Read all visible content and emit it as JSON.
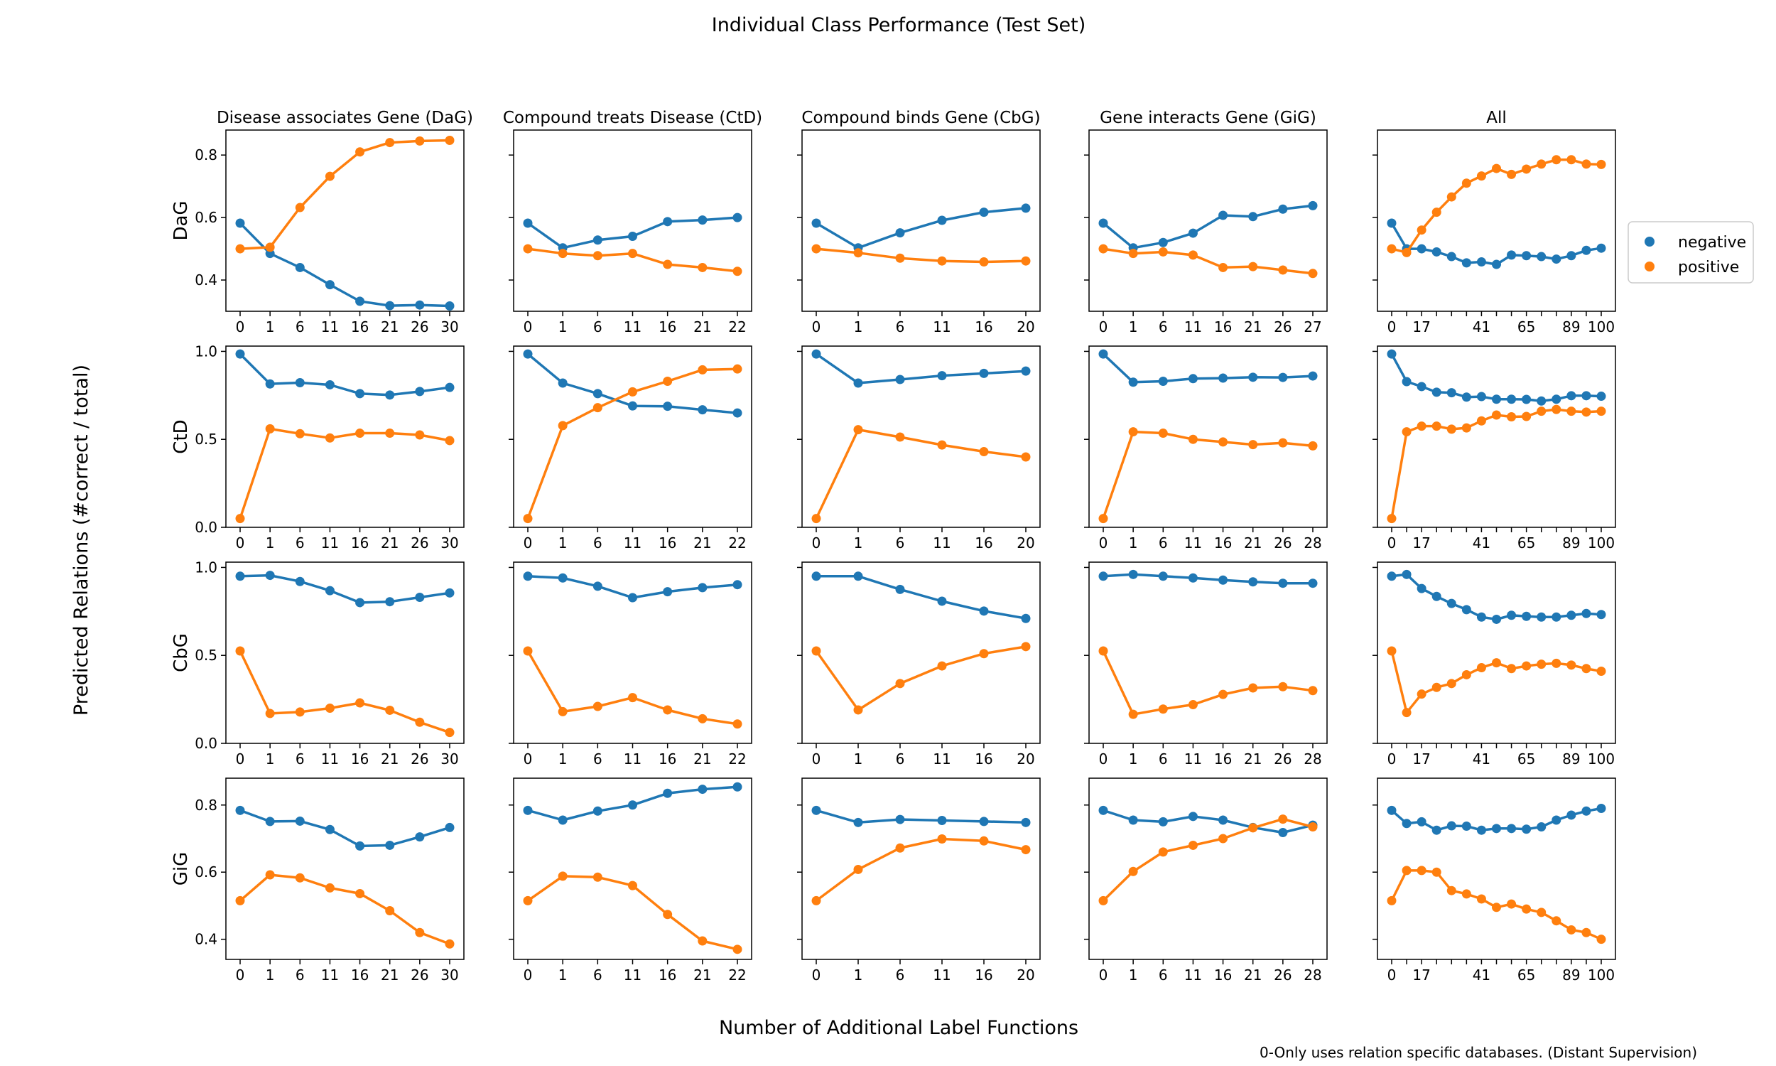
{
  "figure": {
    "title": "Individual Class Performance (Test Set)",
    "xlabel": "Number of Additional Label Functions",
    "ylabel": "Predicted Relations (#correct / total)",
    "footnote": "0-Only uses relation specific databases. (Distant Supervision)"
  },
  "legend": {
    "placement": "right",
    "entries": [
      {
        "label": "negative",
        "color": "#1f77b4"
      },
      {
        "label": "positive",
        "color": "#ff7f0e"
      }
    ]
  },
  "colors": {
    "negative": "#1f77b4",
    "positive": "#ff7f0e"
  },
  "chart_data": {
    "type": "line",
    "columns": [
      {
        "title": "Disease associates Gene (DaG)",
        "x_ticks": [
          "0",
          "1",
          "6",
          "11",
          "16",
          "21",
          "26",
          "30"
        ]
      },
      {
        "title": "Compound treats Disease (CtD)",
        "x_ticks": [
          "0",
          "1",
          "6",
          "11",
          "16",
          "21",
          "22"
        ]
      },
      {
        "title": "Compound binds Gene (CbG)",
        "x_ticks": [
          "0",
          "1",
          "6",
          "11",
          "16",
          "20"
        ]
      },
      {
        "title": "Gene interacts Gene (GiG)",
        "x_ticks": [
          "0",
          "1",
          "6",
          "11",
          "16",
          "21",
          "26",
          "27"
        ]
      },
      {
        "title": "All",
        "x_ticks": [
          "0",
          "17",
          "41",
          "65",
          "89",
          "100"
        ]
      }
    ],
    "rows": [
      {
        "label": "DaG",
        "ylim": [
          0.3,
          0.88
        ],
        "y_ticks": [
          "0.4",
          "0.6",
          "0.8"
        ]
      },
      {
        "label": "CtD",
        "ylim": [
          0.0,
          1.03
        ],
        "y_ticks": [
          "0.0",
          "0.5",
          "1.0"
        ]
      },
      {
        "label": "CbG",
        "ylim": [
          0.0,
          1.03
        ],
        "y_ticks": [
          "0.0",
          "0.5",
          "1.0"
        ]
      },
      {
        "label": "GiG",
        "ylim": [
          0.34,
          0.88
        ],
        "y_ticks": [
          "0.4",
          "0.6",
          "0.8"
        ]
      }
    ],
    "x_ticks_override": {
      "1-3": [
        "0",
        "1",
        "6",
        "11",
        "16",
        "21",
        "26",
        "28"
      ],
      "2-3": [
        "0",
        "1",
        "6",
        "11",
        "16",
        "21",
        "26",
        "28"
      ],
      "3-3": [
        "0",
        "1",
        "6",
        "11",
        "16",
        "21",
        "26",
        "28"
      ]
    },
    "panels": [
      [
        {
          "series": [
            {
              "name": "negative",
              "values": [
                0.582,
                0.485,
                0.44,
                0.385,
                0.332,
                0.318,
                0.32,
                0.317
              ]
            },
            {
              "name": "positive",
              "values": [
                0.5,
                0.505,
                0.632,
                0.732,
                0.81,
                0.84,
                0.845,
                0.847
              ]
            }
          ]
        },
        {
          "series": [
            {
              "name": "negative",
              "values": [
                0.582,
                0.503,
                0.528,
                0.54,
                0.587,
                0.592,
                0.6
              ]
            },
            {
              "name": "positive",
              "values": [
                0.5,
                0.485,
                0.478,
                0.485,
                0.45,
                0.44,
                0.428
              ]
            }
          ]
        },
        {
          "series": [
            {
              "name": "negative",
              "values": [
                0.582,
                0.503,
                0.551,
                0.591,
                0.617,
                0.63
              ]
            },
            {
              "name": "positive",
              "values": [
                0.5,
                0.487,
                0.47,
                0.461,
                0.458,
                0.461
              ]
            }
          ]
        },
        {
          "series": [
            {
              "name": "negative",
              "values": [
                0.582,
                0.503,
                0.52,
                0.55,
                0.607,
                0.603,
                0.627,
                0.638
              ]
            },
            {
              "name": "positive",
              "values": [
                0.5,
                0.485,
                0.49,
                0.48,
                0.44,
                0.443,
                0.432,
                0.421
              ]
            }
          ]
        },
        {
          "series": [
            {
              "name": "negative",
              "values": [
                0.582,
                0.5,
                0.5,
                0.49,
                0.475,
                0.455,
                0.458,
                0.45,
                0.48,
                0.478,
                0.475,
                0.467,
                0.478,
                0.495,
                0.502
              ]
            },
            {
              "name": "positive",
              "values": [
                0.5,
                0.488,
                0.56,
                0.617,
                0.666,
                0.71,
                0.733,
                0.757,
                0.738,
                0.755,
                0.771,
                0.785,
                0.785,
                0.771,
                0.77
              ]
            }
          ]
        }
      ],
      [
        {
          "series": [
            {
              "name": "negative",
              "values": [
                0.985,
                0.815,
                0.822,
                0.81,
                0.76,
                0.752,
                0.772,
                0.795
              ]
            },
            {
              "name": "positive",
              "values": [
                0.05,
                0.56,
                0.532,
                0.508,
                0.535,
                0.535,
                0.525,
                0.493
              ]
            }
          ]
        },
        {
          "series": [
            {
              "name": "negative",
              "values": [
                0.985,
                0.82,
                0.76,
                0.69,
                0.688,
                0.668,
                0.65
              ]
            },
            {
              "name": "positive",
              "values": [
                0.05,
                0.578,
                0.68,
                0.77,
                0.83,
                0.895,
                0.9
              ]
            }
          ]
        },
        {
          "series": [
            {
              "name": "negative",
              "values": [
                0.985,
                0.82,
                0.84,
                0.862,
                0.875,
                0.888
              ]
            },
            {
              "name": "positive",
              "values": [
                0.05,
                0.555,
                0.513,
                0.468,
                0.43,
                0.4
              ]
            }
          ]
        },
        {
          "series": [
            {
              "name": "negative",
              "values": [
                0.985,
                0.825,
                0.83,
                0.845,
                0.848,
                0.853,
                0.852,
                0.86
              ]
            },
            {
              "name": "positive",
              "values": [
                0.05,
                0.543,
                0.535,
                0.5,
                0.485,
                0.47,
                0.48,
                0.463
              ]
            }
          ]
        },
        {
          "series": [
            {
              "name": "negative",
              "values": [
                0.985,
                0.828,
                0.8,
                0.768,
                0.765,
                0.74,
                0.743,
                0.728,
                0.728,
                0.727,
                0.718,
                0.728,
                0.748,
                0.748,
                0.745
              ]
            },
            {
              "name": "positive",
              "values": [
                0.05,
                0.543,
                0.575,
                0.575,
                0.558,
                0.565,
                0.605,
                0.638,
                0.628,
                0.63,
                0.66,
                0.67,
                0.66,
                0.655,
                0.66
              ]
            }
          ]
        }
      ],
      [
        {
          "series": [
            {
              "name": "negative",
              "values": [
                0.95,
                0.955,
                0.92,
                0.868,
                0.8,
                0.805,
                0.83,
                0.855
              ]
            },
            {
              "name": "positive",
              "values": [
                0.525,
                0.17,
                0.178,
                0.2,
                0.23,
                0.188,
                0.12,
                0.062
              ]
            }
          ]
        },
        {
          "series": [
            {
              "name": "negative",
              "values": [
                0.95,
                0.94,
                0.893,
                0.828,
                0.862,
                0.885,
                0.902
              ]
            },
            {
              "name": "positive",
              "values": [
                0.525,
                0.18,
                0.21,
                0.26,
                0.19,
                0.14,
                0.11
              ]
            }
          ]
        },
        {
          "series": [
            {
              "name": "negative",
              "values": [
                0.95,
                0.95,
                0.875,
                0.808,
                0.752,
                0.71
              ]
            },
            {
              "name": "positive",
              "values": [
                0.525,
                0.19,
                0.34,
                0.44,
                0.51,
                0.55
              ]
            }
          ]
        },
        {
          "series": [
            {
              "name": "negative",
              "values": [
                0.95,
                0.96,
                0.95,
                0.94,
                0.928,
                0.918,
                0.91,
                0.91
              ]
            },
            {
              "name": "positive",
              "values": [
                0.525,
                0.165,
                0.195,
                0.22,
                0.278,
                0.315,
                0.322,
                0.3
              ]
            }
          ]
        },
        {
          "series": [
            {
              "name": "negative",
              "values": [
                0.95,
                0.96,
                0.88,
                0.835,
                0.795,
                0.76,
                0.718,
                0.705,
                0.728,
                0.722,
                0.718,
                0.718,
                0.728,
                0.738,
                0.732
              ]
            },
            {
              "name": "positive",
              "values": [
                0.525,
                0.175,
                0.28,
                0.318,
                0.34,
                0.39,
                0.43,
                0.458,
                0.425,
                0.44,
                0.45,
                0.455,
                0.445,
                0.425,
                0.41
              ]
            }
          ]
        }
      ],
      [
        {
          "series": [
            {
              "name": "negative",
              "values": [
                0.784,
                0.751,
                0.752,
                0.727,
                0.678,
                0.68,
                0.705,
                0.733
              ]
            },
            {
              "name": "positive",
              "values": [
                0.515,
                0.592,
                0.583,
                0.553,
                0.536,
                0.485,
                0.42,
                0.386
              ]
            }
          ]
        },
        {
          "series": [
            {
              "name": "negative",
              "values": [
                0.784,
                0.755,
                0.782,
                0.8,
                0.835,
                0.847,
                0.854
              ]
            },
            {
              "name": "positive",
              "values": [
                0.515,
                0.588,
                0.585,
                0.56,
                0.474,
                0.395,
                0.37
              ]
            }
          ]
        },
        {
          "series": [
            {
              "name": "negative",
              "values": [
                0.784,
                0.748,
                0.757,
                0.754,
                0.751,
                0.748
              ]
            },
            {
              "name": "positive",
              "values": [
                0.515,
                0.608,
                0.672,
                0.699,
                0.693,
                0.667
              ]
            }
          ]
        },
        {
          "series": [
            {
              "name": "negative",
              "values": [
                0.784,
                0.755,
                0.75,
                0.766,
                0.755,
                0.733,
                0.718,
                0.74
              ]
            },
            {
              "name": "positive",
              "values": [
                0.515,
                0.602,
                0.66,
                0.68,
                0.7,
                0.732,
                0.758,
                0.735
              ]
            }
          ]
        },
        {
          "series": [
            {
              "name": "negative",
              "values": [
                0.784,
                0.745,
                0.75,
                0.725,
                0.738,
                0.737,
                0.725,
                0.73,
                0.73,
                0.728,
                0.735,
                0.755,
                0.77,
                0.782,
                0.79
              ]
            },
            {
              "name": "positive",
              "values": [
                0.515,
                0.605,
                0.605,
                0.6,
                0.545,
                0.535,
                0.52,
                0.495,
                0.505,
                0.49,
                0.48,
                0.455,
                0.428,
                0.42,
                0.4
              ]
            }
          ]
        }
      ]
    ]
  }
}
